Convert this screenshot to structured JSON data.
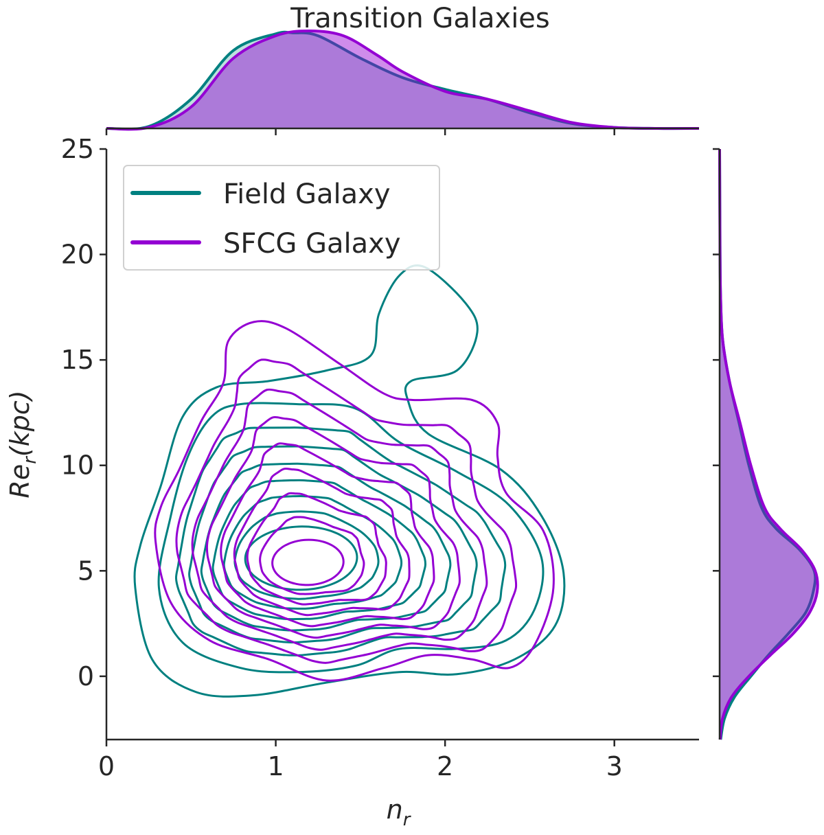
{
  "chart_data": {
    "type": "kde-joint",
    "title": "Transition Galaxies",
    "xlabel": "n_r",
    "ylabel": "Re_r(kpc)",
    "xlim": [
      0,
      3.5
    ],
    "ylim": [
      -3,
      25
    ],
    "xticks": [
      0,
      1,
      2,
      3
    ],
    "yticks": [
      0,
      5,
      10,
      15,
      20,
      25
    ],
    "grid": false,
    "legend_placement": "upper-left",
    "contour_levels": 9,
    "series": [
      {
        "name": "Field Galaxy",
        "color": "#008080",
        "fill_opacity": 0.25,
        "contours_explicit": [
          [
            [
              0.17,
              4.2
            ],
            [
              0.27,
              0.8
            ],
            [
              0.53,
              -0.75
            ],
            [
              0.87,
              -0.9
            ],
            [
              1.3,
              -0.3
            ],
            [
              1.73,
              0.2
            ],
            [
              2.07,
              0.1
            ],
            [
              2.41,
              0.8
            ],
            [
              2.65,
              2.4
            ],
            [
              2.7,
              4.9
            ],
            [
              2.57,
              7.6
            ],
            [
              2.33,
              9.8
            ],
            [
              1.9,
              11.5
            ],
            [
              1.78,
              13.1
            ],
            [
              1.8,
              14.0
            ],
            [
              2.07,
              14.5
            ],
            [
              2.19,
              16.3
            ],
            [
              2.12,
              17.7
            ],
            [
              1.88,
              19.4
            ],
            [
              1.73,
              19.0
            ],
            [
              1.61,
              17.2
            ],
            [
              1.56,
              15.2
            ],
            [
              1.3,
              14.5
            ],
            [
              0.96,
              14.0
            ],
            [
              0.65,
              13.7
            ],
            [
              0.45,
              12.3
            ],
            [
              0.32,
              9.0
            ],
            [
              0.2,
              6.2
            ]
          ],
          [
            [
              1.13,
              12.9
            ],
            [
              1.47,
              12.7
            ],
            [
              1.73,
              11.1
            ],
            [
              2.07,
              9.7
            ],
            [
              2.38,
              8.1
            ],
            [
              2.57,
              5.6
            ],
            [
              2.53,
              3.2
            ],
            [
              2.36,
              1.7
            ],
            [
              2.07,
              1.3
            ],
            [
              1.73,
              1.3
            ],
            [
              1.47,
              0.5
            ],
            [
              1.13,
              0.2
            ],
            [
              0.79,
              0.4
            ],
            [
              0.45,
              1.6
            ],
            [
              0.31,
              4.2
            ],
            [
              0.38,
              7.6
            ],
            [
              0.48,
              10.4
            ],
            [
              0.62,
              12.3
            ],
            [
              0.79,
              12.9
            ]
          ]
        ],
        "innermost": {
          "center": [
            1.15,
            5.6
          ],
          "semi_axes": [
            0.33,
            1.5
          ]
        },
        "marginal_x": [
          [
            0,
            0
          ],
          [
            0.25,
            0.02
          ],
          [
            0.5,
            0.3
          ],
          [
            0.75,
            0.8
          ],
          [
            1.0,
            0.97
          ],
          [
            1.1,
            0.98
          ],
          [
            1.25,
            0.95
          ],
          [
            1.5,
            0.72
          ],
          [
            1.75,
            0.52
          ],
          [
            2.0,
            0.4
          ],
          [
            2.25,
            0.3
          ],
          [
            2.5,
            0.16
          ],
          [
            2.75,
            0.05
          ],
          [
            3.0,
            0.01
          ],
          [
            3.25,
            0
          ],
          [
            3.5,
            0
          ]
        ],
        "marginal_y": [
          [
            -3,
            0.01
          ],
          [
            -2,
            0.05
          ],
          [
            -1,
            0.15
          ],
          [
            0,
            0.32
          ],
          [
            1,
            0.5
          ],
          [
            2,
            0.7
          ],
          [
            3,
            0.88
          ],
          [
            4,
            0.96
          ],
          [
            5,
            0.97
          ],
          [
            6,
            0.82
          ],
          [
            7,
            0.58
          ],
          [
            8,
            0.43
          ],
          [
            10,
            0.3
          ],
          [
            12,
            0.2
          ],
          [
            14,
            0.1
          ],
          [
            16,
            0.03
          ],
          [
            18,
            0.01
          ],
          [
            20,
            0.005
          ],
          [
            25,
            0
          ]
        ]
      },
      {
        "name": "SFCG Galaxy",
        "color": "#9400D3",
        "fill_opacity": 0.45,
        "contours_explicit": [
          [
            [
              1.06,
              16.5
            ],
            [
              1.38,
              14.8
            ],
            [
              1.64,
              13.4
            ],
            [
              1.81,
              13.1
            ],
            [
              2.16,
              13.1
            ],
            [
              2.31,
              12.0
            ],
            [
              2.31,
              10.4
            ],
            [
              2.36,
              8.7
            ],
            [
              2.58,
              6.9
            ],
            [
              2.64,
              4.2
            ],
            [
              2.53,
              1.5
            ],
            [
              2.38,
              0.4
            ],
            [
              2.16,
              0.8
            ],
            [
              1.9,
              1.0
            ],
            [
              1.64,
              0.4
            ],
            [
              1.3,
              -0.2
            ],
            [
              0.96,
              0.8
            ],
            [
              0.61,
              1.7
            ],
            [
              0.38,
              3.5
            ],
            [
              0.29,
              6.4
            ],
            [
              0.32,
              8.0
            ],
            [
              0.43,
              9.8
            ],
            [
              0.56,
              12.1
            ],
            [
              0.69,
              13.9
            ],
            [
              0.72,
              15.9
            ],
            [
              0.87,
              16.8
            ]
          ]
        ],
        "innermost": {
          "center": [
            1.19,
            5.4
          ],
          "semi_axes": [
            0.21,
            1.07
          ]
        },
        "marginal_x": [
          [
            0,
            0
          ],
          [
            0.25,
            0.01
          ],
          [
            0.5,
            0.22
          ],
          [
            0.75,
            0.72
          ],
          [
            1.0,
            0.95
          ],
          [
            1.2,
            1.0
          ],
          [
            1.4,
            0.95
          ],
          [
            1.6,
            0.75
          ],
          [
            1.75,
            0.58
          ],
          [
            2.0,
            0.38
          ],
          [
            2.25,
            0.3
          ],
          [
            2.5,
            0.18
          ],
          [
            2.75,
            0.06
          ],
          [
            3.0,
            0.01
          ],
          [
            3.25,
            0
          ],
          [
            3.5,
            0
          ]
        ],
        "marginal_y": [
          [
            -3,
            0.005
          ],
          [
            -2,
            0.03
          ],
          [
            -1,
            0.12
          ],
          [
            0,
            0.3
          ],
          [
            1,
            0.52
          ],
          [
            2,
            0.75
          ],
          [
            3,
            0.92
          ],
          [
            4,
            1.0
          ],
          [
            5,
            0.98
          ],
          [
            6,
            0.84
          ],
          [
            7,
            0.62
          ],
          [
            8,
            0.46
          ],
          [
            10,
            0.32
          ],
          [
            12,
            0.21
          ],
          [
            14,
            0.1
          ],
          [
            16,
            0.03
          ],
          [
            18,
            0.01
          ],
          [
            20,
            0.004
          ],
          [
            25,
            0
          ]
        ]
      }
    ]
  }
}
